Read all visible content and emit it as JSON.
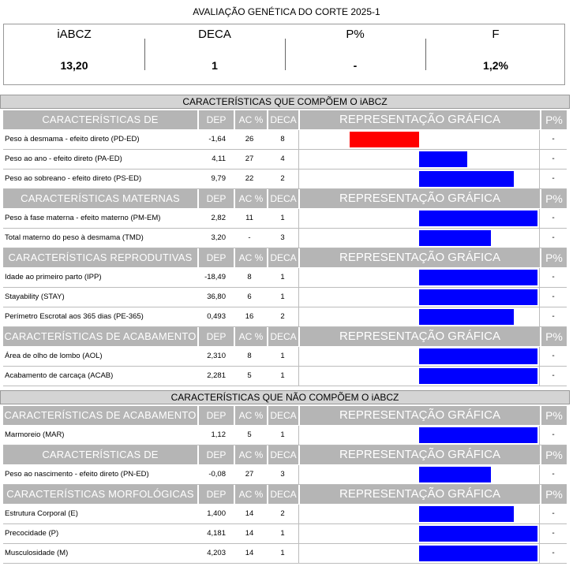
{
  "title": "AVALIAÇÃO GENÉTICA DO CORTE 2025-1",
  "summary": [
    {
      "label": "iABCZ",
      "value": "13,20"
    },
    {
      "label": "DECA",
      "value": "1"
    },
    {
      "label": "P%",
      "value": "-"
    },
    {
      "label": "F",
      "value": "1,2%"
    }
  ],
  "columns": {
    "dep": "DEP",
    "ac": "AC %",
    "deca": "DECA",
    "rep": "REPRESENTAÇÃO GRÁFICA",
    "pp": "P%"
  },
  "sections": [
    {
      "title": "CARACTERÍSTICAS QUE COMPÕEM O iABCZ",
      "groups": [
        {
          "title": "CARACTERÍSTICAS DE CRESCIMENTO",
          "rows": [
            {
              "name": "Peso à desmama - efeito direto (PD-ED)",
              "dep": "-1,64",
              "ac": "26",
              "deca": "8",
              "p": "-",
              "bar": -0.58
            },
            {
              "name": "Peso ao ano - efeito direto (PA-ED)",
              "dep": "4,11",
              "ac": "27",
              "deca": "4",
              "p": "-",
              "bar": 0.4
            },
            {
              "name": "Peso ao sobreano - efeito direto (PS-ED)",
              "dep": "9,79",
              "ac": "22",
              "deca": "2",
              "p": "-",
              "bar": 0.79
            }
          ]
        },
        {
          "title": "CARACTERÍSTICAS MATERNAS",
          "rows": [
            {
              "name": "Peso à fase materna - efeito materno (PM-EM)",
              "dep": "2,82",
              "ac": "11",
              "deca": "1",
              "p": "-",
              "bar": 0.99
            },
            {
              "name": "Total materno do peso à desmama (TMD)",
              "dep": "3,20",
              "ac": "-",
              "deca": "3",
              "p": "-",
              "bar": 0.6
            }
          ]
        },
        {
          "title": "CARACTERÍSTICAS REPRODUTIVAS",
          "rows": [
            {
              "name": "Idade ao primeiro parto (IPP)",
              "dep": "-18,49",
              "ac": "8",
              "deca": "1",
              "p": "-",
              "bar": 0.99
            },
            {
              "name": "Stayability (STAY)",
              "dep": "36,80",
              "ac": "6",
              "deca": "1",
              "p": "-",
              "bar": 0.99
            },
            {
              "name": "Perímetro Escrotal aos 365 dias (PE-365)",
              "dep": "0,493",
              "ac": "16",
              "deca": "2",
              "p": "-",
              "bar": 0.79
            }
          ]
        },
        {
          "title": "CARACTERÍSTICAS DE ACABAMENTO",
          "rows": [
            {
              "name": "Área de olho de lombo (AOL)",
              "dep": "2,310",
              "ac": "8",
              "deca": "1",
              "p": "-",
              "bar": 0.99
            },
            {
              "name": "Acabamento de carcaça (ACAB)",
              "dep": "2,281",
              "ac": "5",
              "deca": "1",
              "p": "-",
              "bar": 0.99
            }
          ]
        }
      ]
    },
    {
      "title": "CARACTERÍSTICAS QUE NÃO COMPÕEM O iABCZ",
      "groups": [
        {
          "title": "CARACTERÍSTICAS DE ACABAMENTO",
          "rows": [
            {
              "name": "Marmoreio (MAR)",
              "dep": "1,12",
              "ac": "5",
              "deca": "1",
              "p": "-",
              "bar": 0.99
            }
          ]
        },
        {
          "title": "CARACTERÍSTICAS DE CRESCIMENTO",
          "rows": [
            {
              "name": "Peso ao nascimento - efeito direto (PN-ED)",
              "dep": "-0,08",
              "ac": "27",
              "deca": "3",
              "p": "-",
              "bar": 0.6
            }
          ]
        },
        {
          "title": "CARACTERÍSTICAS MORFOLÓGICAS",
          "rows": [
            {
              "name": "Estrutura Corporal (E)",
              "dep": "1,400",
              "ac": "14",
              "deca": "2",
              "p": "-",
              "bar": 0.79
            },
            {
              "name": "Precocidade (P)",
              "dep": "4,181",
              "ac": "14",
              "deca": "1",
              "p": "-",
              "bar": 0.99
            },
            {
              "name": "Musculosidade (M)",
              "dep": "4,203",
              "ac": "14",
              "deca": "1",
              "p": "-",
              "bar": 0.99
            }
          ]
        }
      ]
    }
  ]
}
